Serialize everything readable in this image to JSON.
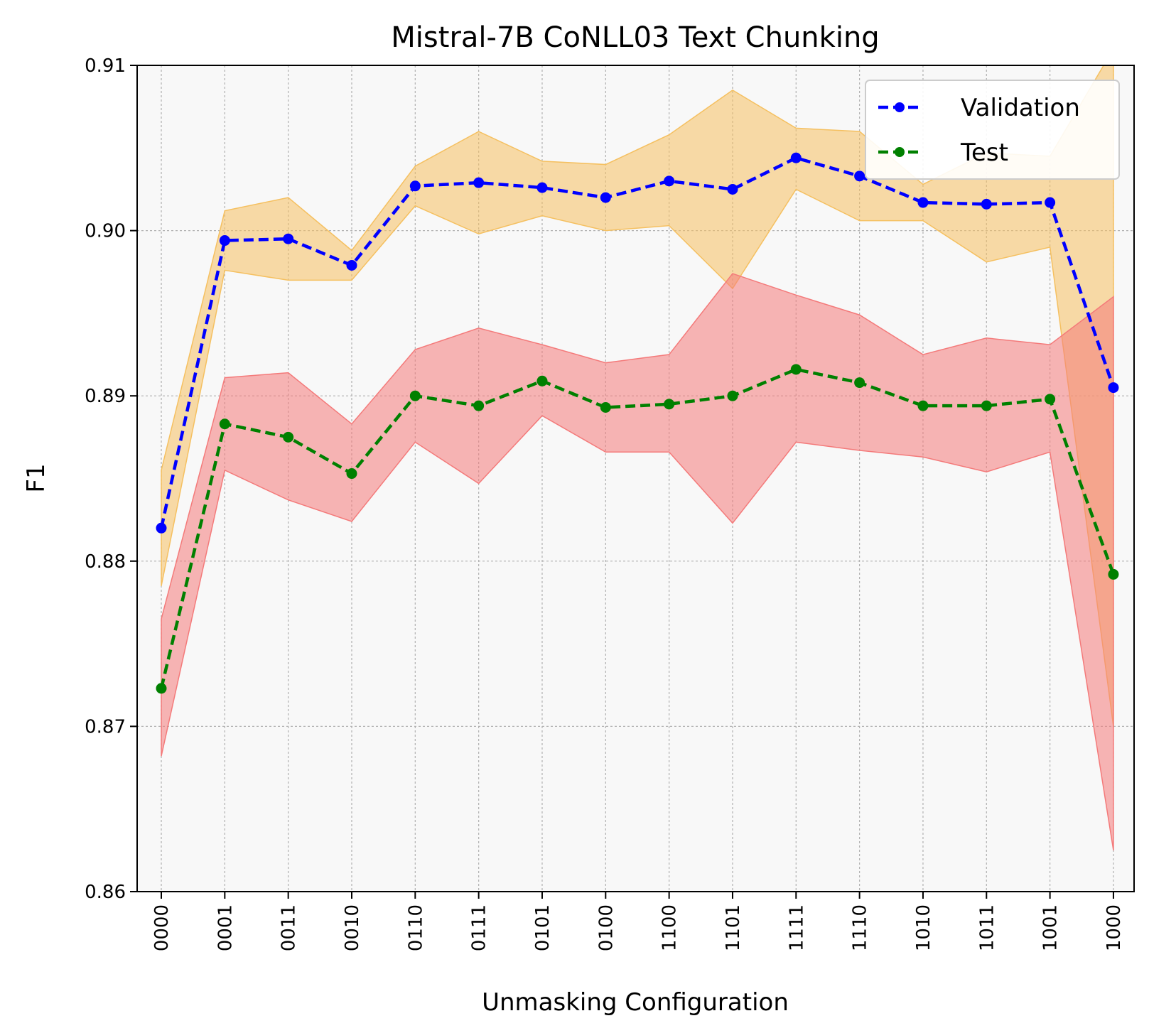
{
  "chart_data": {
    "type": "line",
    "title": "Mistral-7B CoNLL03 Text Chunking",
    "xlabel": "Unmasking Configuration",
    "ylabel": "F1",
    "ylim": [
      0.86,
      0.91
    ],
    "yticks": [
      0.86,
      0.87,
      0.88,
      0.89,
      0.9,
      0.91
    ],
    "ytick_labels": [
      "0.86",
      "0.87",
      "0.88",
      "0.89",
      "0.90",
      "0.91"
    ],
    "categories": [
      "0000",
      "0001",
      "0011",
      "0010",
      "0110",
      "0111",
      "0101",
      "0100",
      "1100",
      "1101",
      "1111",
      "1110",
      "1010",
      "1011",
      "1001",
      "1000"
    ],
    "grid": true,
    "legend_position": "top-right",
    "series": [
      {
        "name": "Validation",
        "color": "#0000ff",
        "band_color": "#f5c060",
        "values": [
          0.882,
          0.8994,
          0.8995,
          0.8979,
          0.9027,
          0.9029,
          0.9026,
          0.902,
          0.903,
          0.9025,
          0.9044,
          0.9033,
          0.9017,
          0.9016,
          0.9017,
          0.8905
        ],
        "lower": [
          0.8785,
          0.8976,
          0.897,
          0.897,
          0.9015,
          0.8998,
          0.9009,
          0.9,
          0.9003,
          0.8965,
          0.9025,
          0.9006,
          0.9006,
          0.8981,
          0.899,
          0.87
        ],
        "upper": [
          0.8855,
          0.9012,
          0.902,
          0.8988,
          0.9039,
          0.906,
          0.9042,
          0.904,
          0.9058,
          0.9085,
          0.9062,
          0.906,
          0.9028,
          0.9047,
          0.9045,
          0.911
        ]
      },
      {
        "name": "Test",
        "color": "#008000",
        "band_color": "#f47a7a",
        "values": [
          0.8723,
          0.8883,
          0.8875,
          0.8853,
          0.89,
          0.8894,
          0.8909,
          0.8893,
          0.8895,
          0.89,
          0.8916,
          0.8908,
          0.8894,
          0.8894,
          0.8898,
          0.8792
        ],
        "lower": [
          0.8682,
          0.8855,
          0.8837,
          0.8824,
          0.8872,
          0.8847,
          0.8888,
          0.8866,
          0.8866,
          0.8823,
          0.8872,
          0.8867,
          0.8863,
          0.8854,
          0.8866,
          0.8625
        ],
        "upper": [
          0.8765,
          0.8911,
          0.8914,
          0.8883,
          0.8928,
          0.8941,
          0.8931,
          0.892,
          0.8925,
          0.8974,
          0.8961,
          0.8949,
          0.8925,
          0.8935,
          0.8931,
          0.896
        ]
      }
    ]
  }
}
